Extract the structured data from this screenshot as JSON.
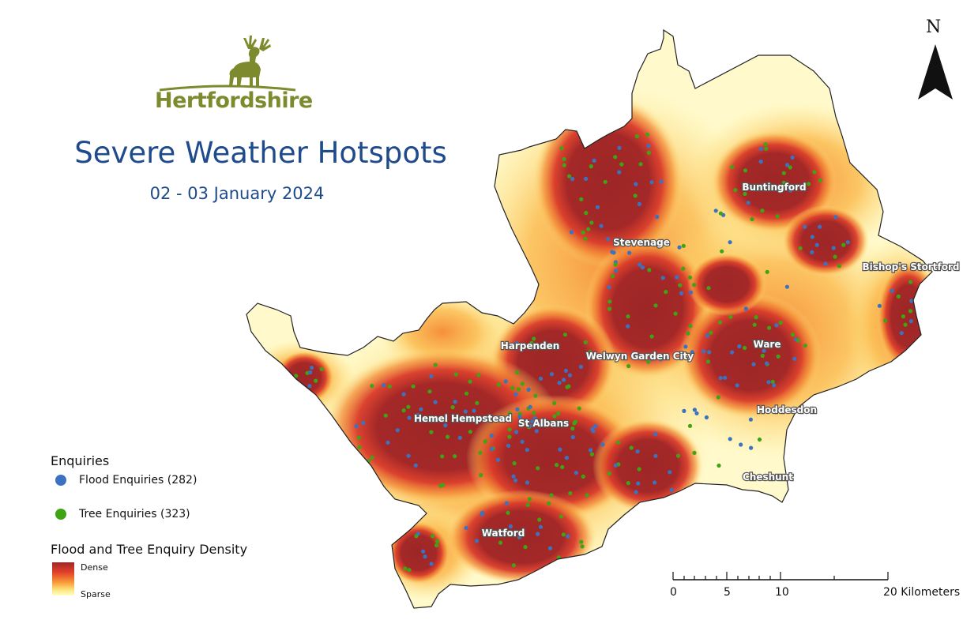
{
  "logo": {
    "text": "Hertfordshire",
    "icon": "stag-icon",
    "color": "#7d8a2e"
  },
  "title": "Severe Weather Hotspots",
  "subtitle": "02 - 03 January 2024",
  "towns": [
    "Stevenage",
    "Buntingford",
    "Bishop's Stortford",
    "Harpenden",
    "Welwyn Garden City",
    "Ware",
    "Hoddesdon",
    "Hemel Hempstead",
    "St Albans",
    "Cheshunt",
    "Watford"
  ],
  "legend": {
    "enquiries_title": "Enquiries",
    "flood_label": "Flood Enquiries (282)",
    "flood_color": "#3b73c0",
    "tree_label": "Tree Enquiries (323)",
    "tree_color": "#3ea413",
    "density_title": "Flood and Tree Enquiry Density",
    "dense_label": "Dense",
    "sparse_label": "Sparse"
  },
  "north_arrow": {
    "letter": "N",
    "icon": "north-arrow-icon"
  },
  "scale_bar": {
    "labels": [
      "0",
      "5",
      "10",
      "20 Kilometers"
    ]
  },
  "colors": {
    "dense": "#9e2626",
    "high": "#e2402a",
    "mid": "#f89a36",
    "low": "#fde27a",
    "sparse": "#ffffc8",
    "title": "#1f4b8c"
  }
}
